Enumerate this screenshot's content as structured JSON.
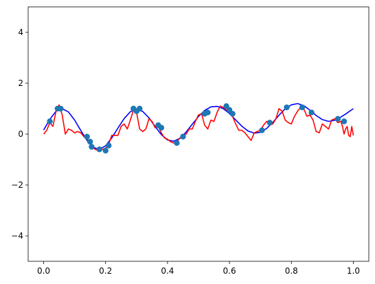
{
  "chart_data": {
    "type": "line",
    "title": "",
    "xlabel": "",
    "ylabel": "",
    "xlim": [
      -0.05,
      1.05
    ],
    "ylim": [
      -5,
      5
    ],
    "grid": false,
    "legend": "none",
    "x_ticks": [
      {
        "value": 0.0,
        "label": "0.0"
      },
      {
        "value": 0.2,
        "label": "0.2"
      },
      {
        "value": 0.4,
        "label": "0.4"
      },
      {
        "value": 0.6,
        "label": "0.6"
      },
      {
        "value": 0.8,
        "label": "0.8"
      },
      {
        "value": 1.0,
        "label": "1.0"
      }
    ],
    "y_ticks": [
      {
        "value": -4,
        "label": "−4"
      },
      {
        "value": -2,
        "label": "−2"
      },
      {
        "value": 0,
        "label": "0"
      },
      {
        "value": 2,
        "label": "2"
      },
      {
        "value": 4,
        "label": "4"
      }
    ],
    "series": [
      {
        "kind": "line",
        "color": "#0000ff",
        "x": [
          0.0,
          0.02,
          0.04,
          0.06,
          0.08,
          0.1,
          0.12,
          0.14,
          0.16,
          0.18,
          0.2,
          0.22,
          0.24,
          0.26,
          0.28,
          0.3,
          0.32,
          0.34,
          0.36,
          0.38,
          0.4,
          0.42,
          0.44,
          0.46,
          0.48,
          0.5,
          0.52,
          0.54,
          0.56,
          0.58,
          0.6,
          0.62,
          0.64,
          0.66,
          0.68,
          0.7,
          0.72,
          0.74,
          0.76,
          0.78,
          0.8,
          0.82,
          0.84,
          0.86,
          0.88,
          0.9,
          0.92,
          0.94,
          0.96,
          0.98,
          1.0
        ],
        "y": [
          0.16,
          0.58,
          0.9,
          1.0,
          0.87,
          0.55,
          0.14,
          -0.25,
          -0.52,
          -0.6,
          -0.46,
          -0.15,
          0.24,
          0.61,
          0.88,
          0.98,
          0.89,
          0.64,
          0.3,
          -0.02,
          -0.23,
          -0.28,
          -0.17,
          0.08,
          0.39,
          0.69,
          0.93,
          1.07,
          1.09,
          1.0,
          0.81,
          0.56,
          0.31,
          0.12,
          0.04,
          0.07,
          0.22,
          0.46,
          0.74,
          0.99,
          1.15,
          1.2,
          1.12,
          0.94,
          0.73,
          0.57,
          0.5,
          0.54,
          0.67,
          0.83,
          1.0
        ]
      },
      {
        "kind": "line",
        "color": "#ff0000",
        "x": [
          0.0,
          0.01,
          0.02,
          0.03,
          0.04,
          0.05,
          0.06,
          0.07,
          0.08,
          0.09,
          0.1,
          0.11,
          0.12,
          0.13,
          0.14,
          0.15,
          0.16,
          0.17,
          0.18,
          0.19,
          0.2,
          0.21,
          0.22,
          0.23,
          0.24,
          0.25,
          0.26,
          0.27,
          0.28,
          0.29,
          0.3,
          0.31,
          0.32,
          0.33,
          0.34,
          0.35,
          0.36,
          0.37,
          0.38,
          0.39,
          0.4,
          0.41,
          0.42,
          0.43,
          0.44,
          0.45,
          0.46,
          0.47,
          0.48,
          0.49,
          0.5,
          0.51,
          0.52,
          0.53,
          0.54,
          0.55,
          0.56,
          0.57,
          0.58,
          0.59,
          0.6,
          0.61,
          0.62,
          0.63,
          0.64,
          0.65,
          0.66,
          0.67,
          0.68,
          0.69,
          0.7,
          0.71,
          0.72,
          0.73,
          0.74,
          0.75,
          0.76,
          0.77,
          0.78,
          0.79,
          0.8,
          0.81,
          0.82,
          0.83,
          0.84,
          0.85,
          0.86,
          0.87,
          0.88,
          0.89,
          0.9,
          0.91,
          0.92,
          0.93,
          0.94,
          0.95,
          0.96,
          0.965,
          0.97,
          0.975,
          0.98,
          0.985,
          0.99,
          0.995,
          1.0
        ],
        "y": [
          0.0,
          0.15,
          0.45,
          0.3,
          0.9,
          1.15,
          0.75,
          0.0,
          0.2,
          0.15,
          0.05,
          0.1,
          0.05,
          -0.1,
          -0.2,
          -0.4,
          -0.55,
          -0.62,
          -0.62,
          -0.6,
          -0.55,
          -0.4,
          -0.05,
          -0.05,
          -0.05,
          0.3,
          0.4,
          0.2,
          0.55,
          0.95,
          0.85,
          0.2,
          0.1,
          0.2,
          0.6,
          0.5,
          0.25,
          0.3,
          0.05,
          -0.15,
          -0.2,
          -0.3,
          -0.35,
          -0.3,
          -0.15,
          -0.1,
          0.0,
          0.2,
          0.2,
          0.5,
          0.75,
          0.8,
          0.35,
          0.2,
          0.55,
          0.5,
          0.85,
          1.1,
          1.05,
          0.95,
          0.85,
          0.7,
          0.4,
          0.15,
          0.15,
          0.05,
          -0.1,
          -0.25,
          0.05,
          0.1,
          0.15,
          0.35,
          0.5,
          0.35,
          0.4,
          0.6,
          1.0,
          0.9,
          0.55,
          0.45,
          0.4,
          0.7,
          0.9,
          1.05,
          1.0,
          0.7,
          0.75,
          0.55,
          0.1,
          0.05,
          0.4,
          0.3,
          0.2,
          0.55,
          0.6,
          0.45,
          0.5,
          0.3,
          0.0,
          0.2,
          0.3,
          -0.05,
          -0.1,
          0.3,
          -0.05
        ]
      },
      {
        "kind": "scatter",
        "color": "#1f77b4",
        "x": [
          0.02,
          0.045,
          0.055,
          0.14,
          0.15,
          0.155,
          0.18,
          0.2,
          0.21,
          0.29,
          0.3,
          0.31,
          0.37,
          0.38,
          0.43,
          0.45,
          0.52,
          0.53,
          0.59,
          0.6,
          0.61,
          0.705,
          0.73,
          0.785,
          0.835,
          0.865,
          0.95,
          0.97
        ],
        "y": [
          0.5,
          1.0,
          1.0,
          -0.1,
          -0.3,
          -0.5,
          -0.6,
          -0.65,
          -0.45,
          1.0,
          0.9,
          1.0,
          0.35,
          0.25,
          -0.35,
          -0.1,
          0.8,
          0.85,
          1.1,
          0.95,
          0.8,
          0.15,
          0.45,
          1.05,
          1.05,
          0.85,
          0.6,
          0.5
        ]
      }
    ]
  }
}
